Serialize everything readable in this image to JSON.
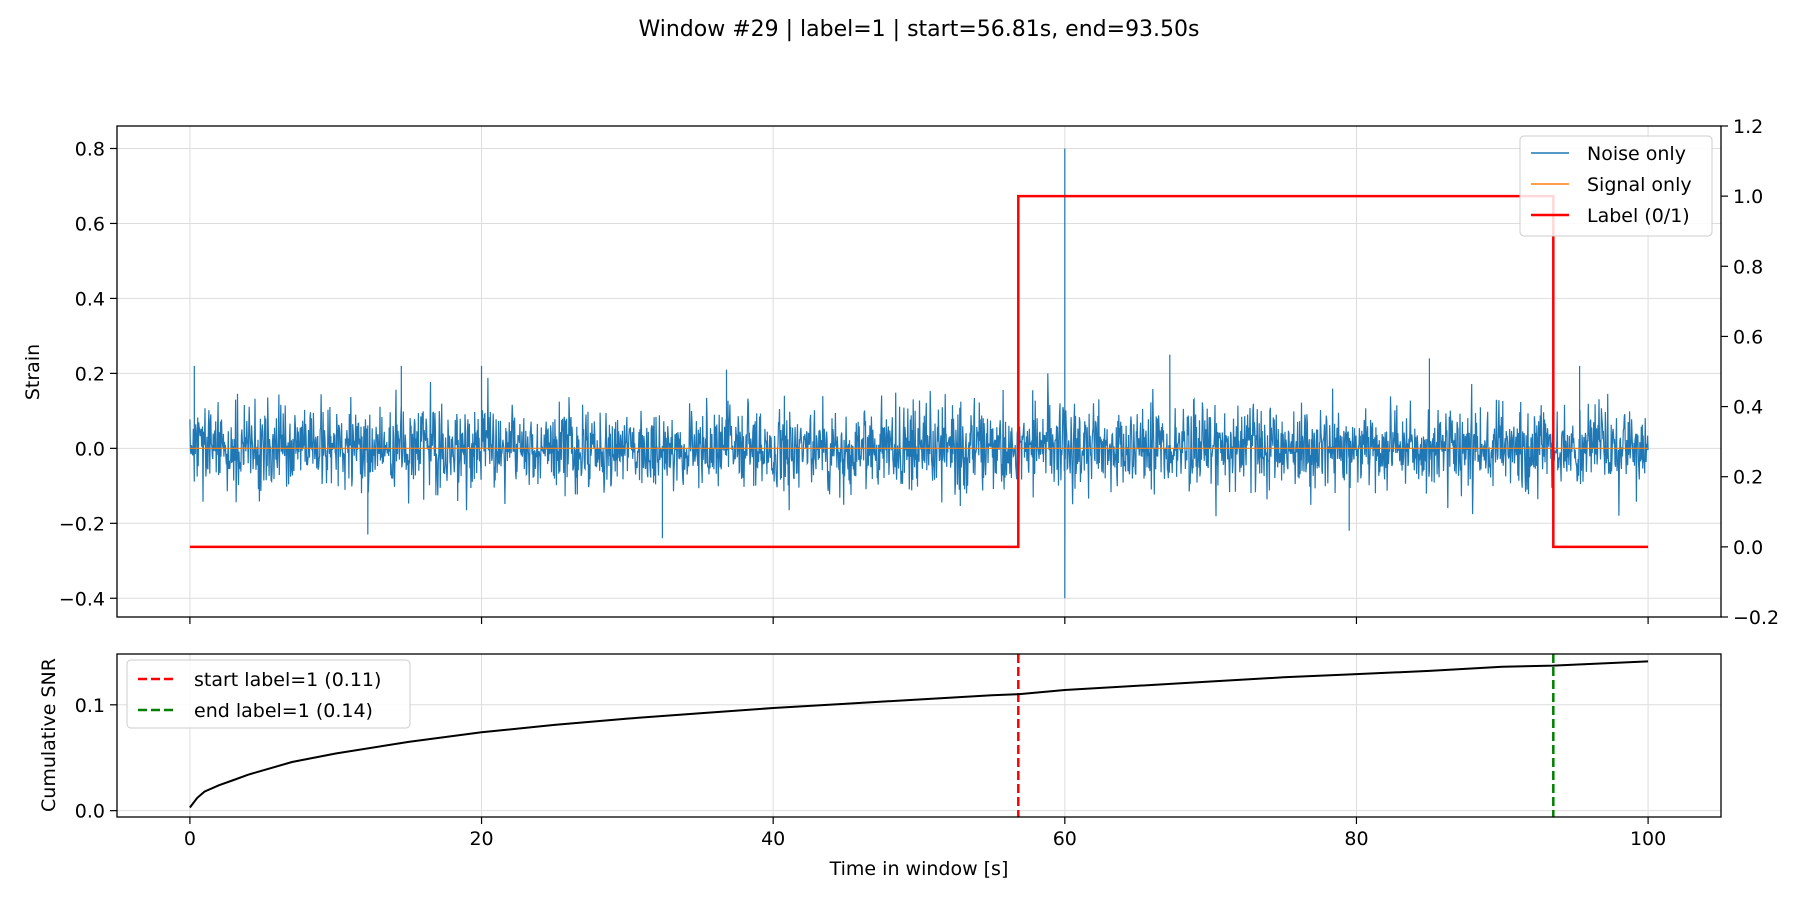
{
  "figure": {
    "title": "Window #29 | label=1 | start=56.81s, end=93.50s"
  },
  "chart_data": [
    {
      "type": "line",
      "title": "",
      "xlabel": "",
      "ylabel": "Strain",
      "xlim": [
        -5,
        105
      ],
      "ylim": [
        -0.45,
        0.86
      ],
      "y2lim": [
        -0.2,
        1.2
      ],
      "x_ticks": [
        0,
        20,
        40,
        60,
        80,
        100
      ],
      "y_ticks": [
        -0.4,
        -0.2,
        0.0,
        0.2,
        0.4,
        0.6,
        0.8
      ],
      "y_tick_labels": [
        "−0.4",
        "−0.2",
        "0.0",
        "0.2",
        "0.4",
        "0.6",
        "0.8"
      ],
      "y2_ticks": [
        -0.2,
        0.0,
        0.2,
        0.4,
        0.6,
        0.8,
        1.0,
        1.2
      ],
      "y2_tick_labels": [
        "−0.2",
        "0.0",
        "0.2",
        "0.4",
        "0.6",
        "0.8",
        "1.0",
        "1.2"
      ],
      "grid": true,
      "legend": {
        "placement": "upper right",
        "entries": [
          "Noise only",
          "Signal only",
          "Label (0/1)"
        ]
      },
      "series": [
        {
          "name": "Noise only",
          "color": "#1f77b4",
          "description_values": {
            "x_range": [
              0,
              100
            ],
            "baseline_std": 0.055,
            "typical_envelope": [
              -0.2,
              0.2
            ],
            "spikes": [
              {
                "x": 0.3,
                "y": 0.22
              },
              {
                "x": 12.2,
                "y": -0.23
              },
              {
                "x": 14.5,
                "y": 0.22
              },
              {
                "x": 20.0,
                "y": 0.22
              },
              {
                "x": 32.4,
                "y": -0.24
              },
              {
                "x": 36.8,
                "y": 0.21
              },
              {
                "x": 60.0,
                "y": 0.8
              },
              {
                "x": 60.0,
                "y": -0.4
              },
              {
                "x": 67.2,
                "y": 0.25
              },
              {
                "x": 79.5,
                "y": -0.22
              },
              {
                "x": 85.0,
                "y": 0.24
              },
              {
                "x": 95.3,
                "y": 0.22
              }
            ]
          }
        },
        {
          "name": "Signal only",
          "color": "#ff7f0e",
          "x": [
            0,
            100
          ],
          "y": [
            0,
            0
          ]
        },
        {
          "name": "Label (0/1)",
          "color": "#ff0000",
          "axis": "right",
          "x": [
            0,
            56.81,
            56.81,
            93.5,
            93.5,
            100
          ],
          "y": [
            0,
            0,
            1,
            1,
            0,
            0
          ]
        }
      ]
    },
    {
      "type": "line",
      "title": "",
      "xlabel": "Time in window [s]",
      "ylabel": "Cumulative SNR",
      "xlim": [
        -5,
        105
      ],
      "ylim": [
        -0.006,
        0.148
      ],
      "x_ticks": [
        0,
        20,
        40,
        60,
        80,
        100
      ],
      "x_tick_labels": [
        "0",
        "20",
        "40",
        "60",
        "80",
        "100"
      ],
      "y_ticks": [
        0.0,
        0.1
      ],
      "y_tick_labels": [
        "0.0",
        "0.1"
      ],
      "grid": true,
      "legend": {
        "placement": "upper left",
        "entries": [
          "start label=1 (0.11)",
          "end label=1 (0.14)"
        ]
      },
      "series": [
        {
          "name": "",
          "color": "#000000",
          "x": [
            0,
            0.5,
            1,
            2,
            3,
            4,
            5,
            7,
            10,
            15,
            20,
            25,
            30,
            35,
            40,
            45,
            50,
            55,
            56.81,
            60,
            65,
            70,
            75,
            80,
            85,
            90,
            93.5,
            95,
            100
          ],
          "y": [
            0.003,
            0.012,
            0.018,
            0.024,
            0.029,
            0.034,
            0.038,
            0.046,
            0.054,
            0.065,
            0.074,
            0.081,
            0.087,
            0.092,
            0.097,
            0.101,
            0.105,
            0.109,
            0.11,
            0.114,
            0.118,
            0.122,
            0.126,
            0.129,
            0.132,
            0.136,
            0.137,
            0.138,
            0.141
          ]
        },
        {
          "name": "start label=1 (0.11)",
          "color": "#ff0000",
          "dashed": true,
          "x": [
            56.81,
            56.81
          ],
          "y": [
            -0.006,
            0.148
          ]
        },
        {
          "name": "end label=1 (0.14)",
          "color": "#008000",
          "dashed": true,
          "x": [
            93.5,
            93.5
          ],
          "y": [
            -0.006,
            0.148
          ]
        }
      ]
    }
  ]
}
